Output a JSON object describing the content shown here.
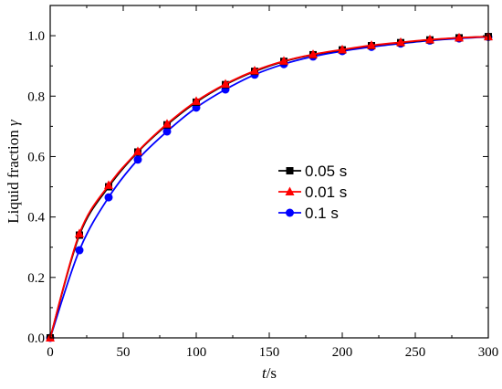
{
  "chart_data": {
    "type": "line",
    "xlabel_italic": "t",
    "xlabel_unit": "/s",
    "ylabel_main": "Liquid fraction ",
    "ylabel_symbol": "γ",
    "xlim": [
      0,
      300
    ],
    "ylim": [
      0,
      1.1
    ],
    "xticks": [
      0,
      50,
      100,
      150,
      200,
      250,
      300
    ],
    "yticks": [
      0.0,
      0.2,
      0.4,
      0.6,
      0.8,
      1.0
    ],
    "ytick_labels": [
      "0.0",
      "0.2",
      "0.4",
      "0.6",
      "0.8",
      "1.0"
    ],
    "grid": false,
    "legend_position": "center-right",
    "series": [
      {
        "name": "0.05 s",
        "color": "#000000",
        "marker": "square",
        "x": [
          0,
          20,
          40,
          60,
          80,
          100,
          120,
          140,
          160,
          180,
          200,
          220,
          240,
          260,
          280,
          300
        ],
        "y": [
          0.0,
          0.34,
          0.5,
          0.615,
          0.705,
          0.78,
          0.838,
          0.882,
          0.915,
          0.937,
          0.953,
          0.967,
          0.977,
          0.986,
          0.993,
          0.997
        ]
      },
      {
        "name": "0.01 s",
        "color": "#ff0000",
        "marker": "triangle",
        "x": [
          0,
          20,
          40,
          60,
          80,
          100,
          120,
          140,
          160,
          180,
          200,
          220,
          240,
          260,
          280,
          300
        ],
        "y": [
          0.0,
          0.345,
          0.505,
          0.617,
          0.708,
          0.783,
          0.84,
          0.884,
          0.916,
          0.938,
          0.954,
          0.968,
          0.978,
          0.987,
          0.993,
          0.997
        ]
      },
      {
        "name": "0.1 s",
        "color": "#0000ff",
        "marker": "circle",
        "x": [
          0,
          20,
          40,
          60,
          80,
          100,
          120,
          140,
          160,
          180,
          200,
          220,
          240,
          260,
          280,
          300
        ],
        "y": [
          0.0,
          0.29,
          0.465,
          0.59,
          0.683,
          0.762,
          0.822,
          0.871,
          0.906,
          0.931,
          0.949,
          0.963,
          0.974,
          0.984,
          0.991,
          0.996
        ]
      }
    ]
  }
}
